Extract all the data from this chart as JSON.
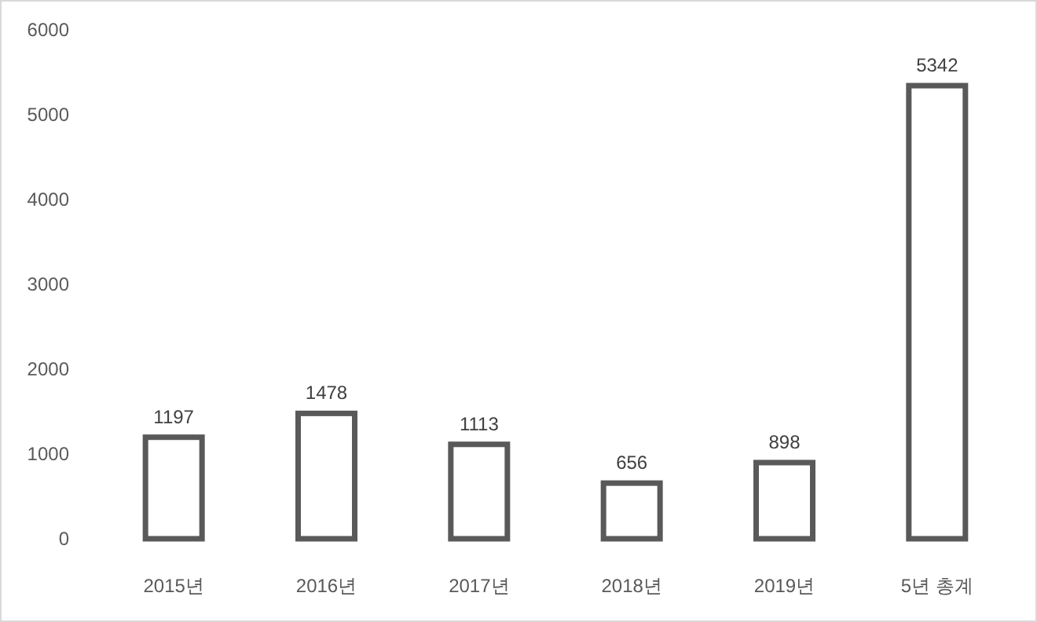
{
  "chart_data": {
    "type": "bar",
    "categories": [
      "2015년",
      "2016년",
      "2017년",
      "2018년",
      "2019년",
      "5년 총계"
    ],
    "values": [
      1197,
      1478,
      1113,
      656,
      898,
      5342
    ],
    "color": "#595959",
    "ylim": [
      0,
      6000
    ],
    "yticks": [
      0,
      1000,
      2000,
      3000,
      4000,
      5000,
      6000
    ],
    "data_labels": true
  }
}
